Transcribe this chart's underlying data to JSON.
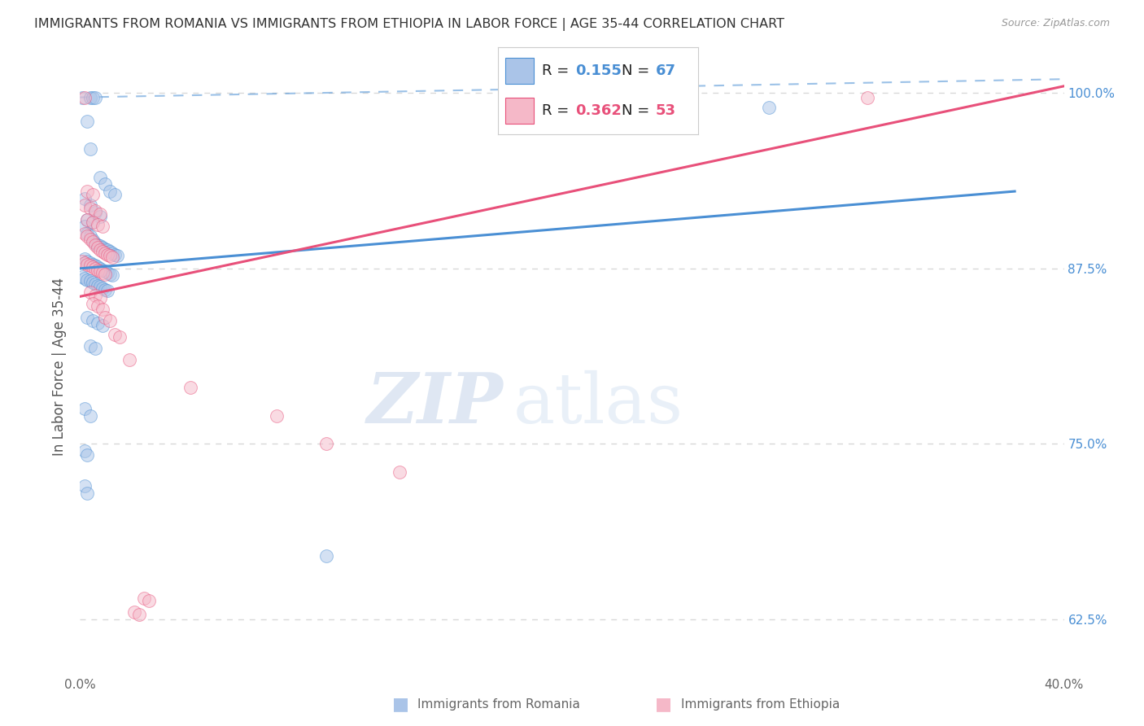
{
  "title": "IMMIGRANTS FROM ROMANIA VS IMMIGRANTS FROM ETHIOPIA IN LABOR FORCE | AGE 35-44 CORRELATION CHART",
  "source": "Source: ZipAtlas.com",
  "ylabel": "In Labor Force | Age 35-44",
  "xlim": [
    0.0,
    0.4
  ],
  "ylim": [
    0.585,
    1.025
  ],
  "yticks": [
    0.625,
    0.75,
    0.875,
    1.0
  ],
  "ytick_labels": [
    "62.5%",
    "75.0%",
    "87.5%",
    "100.0%"
  ],
  "xticks": [
    0.0,
    0.05,
    0.1,
    0.15,
    0.2,
    0.25,
    0.3,
    0.35,
    0.4
  ],
  "xtick_labels": [
    "0.0%",
    "",
    "",
    "",
    "",
    "",
    "",
    "",
    "40.0%"
  ],
  "romania_color": "#aac4e8",
  "ethiopia_color": "#f5b8c8",
  "romania_line_color": "#4a8fd4",
  "ethiopia_line_color": "#e8507a",
  "tick_color_right": "#4a8fd4",
  "watermark_zip": "ZIP",
  "watermark_atlas": "atlas",
  "romania_scatter": [
    [
      0.001,
      0.997
    ],
    [
      0.004,
      0.997
    ],
    [
      0.005,
      0.997
    ],
    [
      0.006,
      0.997
    ],
    [
      0.003,
      0.98
    ],
    [
      0.004,
      0.96
    ],
    [
      0.008,
      0.94
    ],
    [
      0.01,
      0.935
    ],
    [
      0.012,
      0.93
    ],
    [
      0.014,
      0.928
    ],
    [
      0.002,
      0.925
    ],
    [
      0.004,
      0.92
    ],
    [
      0.006,
      0.915
    ],
    [
      0.008,
      0.912
    ],
    [
      0.003,
      0.91
    ],
    [
      0.005,
      0.908
    ],
    [
      0.002,
      0.905
    ],
    [
      0.003,
      0.9
    ],
    [
      0.004,
      0.898
    ],
    [
      0.005,
      0.895
    ],
    [
      0.006,
      0.893
    ],
    [
      0.007,
      0.892
    ],
    [
      0.008,
      0.891
    ],
    [
      0.009,
      0.89
    ],
    [
      0.01,
      0.889
    ],
    [
      0.011,
      0.888
    ],
    [
      0.012,
      0.887
    ],
    [
      0.013,
      0.886
    ],
    [
      0.014,
      0.885
    ],
    [
      0.015,
      0.884
    ],
    [
      0.002,
      0.882
    ],
    [
      0.003,
      0.88
    ],
    [
      0.004,
      0.879
    ],
    [
      0.005,
      0.878
    ],
    [
      0.006,
      0.877
    ],
    [
      0.007,
      0.876
    ],
    [
      0.008,
      0.875
    ],
    [
      0.009,
      0.874
    ],
    [
      0.01,
      0.873
    ],
    [
      0.011,
      0.872
    ],
    [
      0.012,
      0.871
    ],
    [
      0.013,
      0.87
    ],
    [
      0.001,
      0.869
    ],
    [
      0.002,
      0.868
    ],
    [
      0.003,
      0.867
    ],
    [
      0.004,
      0.866
    ],
    [
      0.005,
      0.865
    ],
    [
      0.006,
      0.864
    ],
    [
      0.007,
      0.863
    ],
    [
      0.008,
      0.862
    ],
    [
      0.009,
      0.861
    ],
    [
      0.01,
      0.86
    ],
    [
      0.011,
      0.859
    ],
    [
      0.003,
      0.84
    ],
    [
      0.005,
      0.838
    ],
    [
      0.007,
      0.836
    ],
    [
      0.009,
      0.834
    ],
    [
      0.004,
      0.82
    ],
    [
      0.006,
      0.818
    ],
    [
      0.002,
      0.775
    ],
    [
      0.004,
      0.77
    ],
    [
      0.002,
      0.745
    ],
    [
      0.003,
      0.742
    ],
    [
      0.002,
      0.72
    ],
    [
      0.003,
      0.715
    ],
    [
      0.1,
      0.67
    ],
    [
      0.175,
      0.998
    ],
    [
      0.28,
      0.99
    ]
  ],
  "ethiopia_scatter": [
    [
      0.002,
      0.997
    ],
    [
      0.32,
      0.997
    ],
    [
      0.003,
      0.93
    ],
    [
      0.005,
      0.928
    ],
    [
      0.002,
      0.92
    ],
    [
      0.004,
      0.918
    ],
    [
      0.006,
      0.916
    ],
    [
      0.008,
      0.914
    ],
    [
      0.003,
      0.91
    ],
    [
      0.005,
      0.908
    ],
    [
      0.007,
      0.906
    ],
    [
      0.009,
      0.905
    ],
    [
      0.002,
      0.9
    ],
    [
      0.003,
      0.898
    ],
    [
      0.004,
      0.896
    ],
    [
      0.005,
      0.894
    ],
    [
      0.006,
      0.892
    ],
    [
      0.007,
      0.89
    ],
    [
      0.008,
      0.888
    ],
    [
      0.009,
      0.887
    ],
    [
      0.01,
      0.886
    ],
    [
      0.011,
      0.885
    ],
    [
      0.012,
      0.884
    ],
    [
      0.013,
      0.883
    ],
    [
      0.001,
      0.88
    ],
    [
      0.002,
      0.879
    ],
    [
      0.003,
      0.878
    ],
    [
      0.004,
      0.877
    ],
    [
      0.005,
      0.876
    ],
    [
      0.006,
      0.875
    ],
    [
      0.007,
      0.874
    ],
    [
      0.008,
      0.873
    ],
    [
      0.009,
      0.872
    ],
    [
      0.01,
      0.871
    ],
    [
      0.004,
      0.858
    ],
    [
      0.006,
      0.856
    ],
    [
      0.008,
      0.854
    ],
    [
      0.005,
      0.85
    ],
    [
      0.007,
      0.848
    ],
    [
      0.009,
      0.846
    ],
    [
      0.01,
      0.84
    ],
    [
      0.012,
      0.838
    ],
    [
      0.014,
      0.828
    ],
    [
      0.016,
      0.826
    ],
    [
      0.02,
      0.81
    ],
    [
      0.045,
      0.79
    ],
    [
      0.08,
      0.77
    ],
    [
      0.1,
      0.75
    ],
    [
      0.13,
      0.73
    ],
    [
      0.026,
      0.64
    ],
    [
      0.028,
      0.638
    ],
    [
      0.022,
      0.63
    ],
    [
      0.024,
      0.628
    ]
  ],
  "romania_line": {
    "x0": 0.0,
    "y0": 0.875,
    "x1": 0.38,
    "y1": 0.93
  },
  "ethiopia_line": {
    "x0": 0.0,
    "y0": 0.855,
    "x1": 0.4,
    "y1": 1.005
  },
  "dashed_line": {
    "x0": 0.0,
    "y0": 0.997,
    "x1": 0.4,
    "y1": 1.01
  },
  "background_color": "#ffffff",
  "grid_color": "#d8d8d8",
  "scatter_alpha": 0.5,
  "scatter_size": 130
}
